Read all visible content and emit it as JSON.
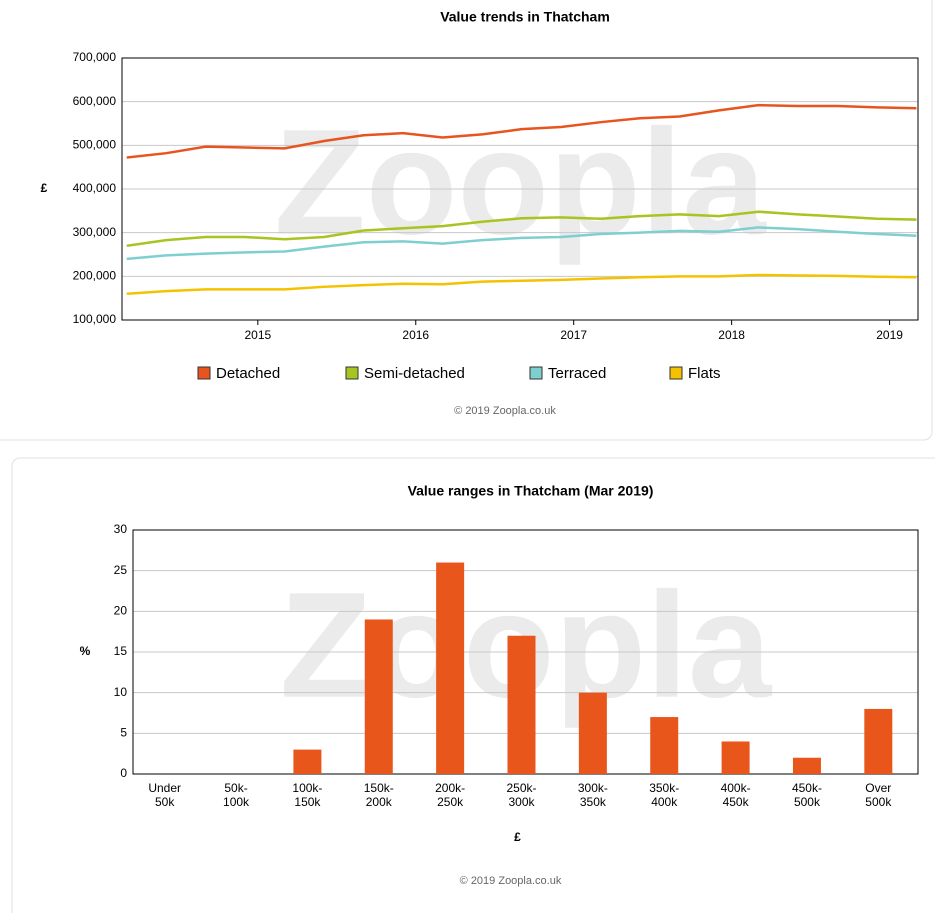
{
  "chart_data": [
    {
      "type": "line",
      "title": "Value trends in Thatcham",
      "ylabel": "£",
      "watermark": "Zoopla",
      "footer": "© 2019 Zoopla.co.uk",
      "x": [
        2014.17,
        2014.42,
        2014.67,
        2014.92,
        2015.17,
        2015.42,
        2015.67,
        2015.92,
        2016.17,
        2016.42,
        2016.67,
        2016.92,
        2017.17,
        2017.42,
        2017.67,
        2017.92,
        2018.17,
        2018.42,
        2018.67,
        2018.92,
        2019.17
      ],
      "xlim": [
        2014.14,
        2019.18
      ],
      "xticks": [
        2015,
        2016,
        2017,
        2018,
        2019
      ],
      "ylim": [
        100000,
        700000
      ],
      "yticks": [
        {
          "value": 100000,
          "label": "100,000"
        },
        {
          "value": 200000,
          "label": "200,000"
        },
        {
          "value": 300000,
          "label": "300,000"
        },
        {
          "value": 400000,
          "label": "400,000"
        },
        {
          "value": 500000,
          "label": "500,000"
        },
        {
          "value": 600000,
          "label": "600,000"
        },
        {
          "value": 700000,
          "label": "700,000"
        }
      ],
      "grid": true,
      "legend": "bottom",
      "series": [
        {
          "name": "Detached",
          "color": "#e8541e",
          "values": [
            472000,
            482000,
            497000,
            495000,
            493000,
            510000,
            523000,
            528000,
            518000,
            525000,
            537000,
            542000,
            553000,
            562000,
            566000,
            580000,
            592000,
            590000,
            590000,
            587000,
            585000
          ]
        },
        {
          "name": "Semi-detached",
          "color": "#a6c520",
          "values": [
            270000,
            283000,
            290000,
            290000,
            285000,
            290000,
            305000,
            310000,
            315000,
            325000,
            333000,
            335000,
            332000,
            338000,
            342000,
            338000,
            348000,
            342000,
            337000,
            332000,
            330000
          ]
        },
        {
          "name": "Terraced",
          "color": "#7ecfd0",
          "values": [
            240000,
            248000,
            252000,
            255000,
            257000,
            268000,
            278000,
            280000,
            275000,
            283000,
            288000,
            290000,
            297000,
            300000,
            304000,
            302000,
            312000,
            308000,
            302000,
            297000,
            293000
          ]
        },
        {
          "name": "Flats",
          "color": "#f5c200",
          "values": [
            160000,
            166000,
            170000,
            170000,
            170000,
            176000,
            180000,
            183000,
            182000,
            188000,
            190000,
            192000,
            195000,
            198000,
            200000,
            200000,
            203000,
            202000,
            201000,
            199000,
            198000
          ]
        }
      ]
    },
    {
      "type": "bar",
      "title": "Value ranges in Thatcham (Mar 2019)",
      "ylabel": "%",
      "xlabel": "£",
      "watermark": "Zoopla",
      "footer": "© 2019 Zoopla.co.uk",
      "categories": [
        "Under 50k",
        "50k-100k",
        "100k-150k",
        "150k-200k",
        "200k-250k",
        "250k-300k",
        "300k-350k",
        "350k-400k",
        "400k-450k",
        "450k-500k",
        "Over 500k"
      ],
      "values": [
        0,
        0,
        3,
        19,
        26,
        17,
        10,
        7,
        4,
        2,
        8
      ],
      "color": "#e8561c",
      "ylim": [
        0,
        30
      ],
      "yticks": [
        0,
        5,
        10,
        15,
        20,
        25,
        30
      ],
      "grid": true
    }
  ]
}
